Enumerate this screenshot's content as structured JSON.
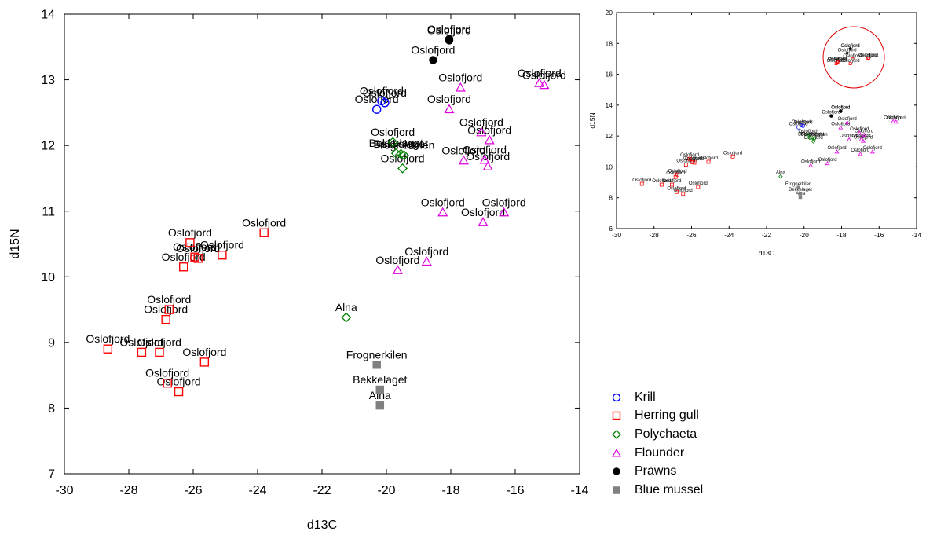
{
  "chart_data": [
    {
      "type": "scatter",
      "xlabel": "d13C",
      "ylabel": "d15N",
      "xlim": [
        -30,
        -14
      ],
      "ylim": [
        7,
        14
      ],
      "xticks": [
        -30,
        -28,
        -26,
        -24,
        -22,
        -20,
        -18,
        -16,
        -14
      ],
      "yticks": [
        7,
        8,
        9,
        10,
        11,
        12,
        13,
        14
      ],
      "grid": false,
      "legend_position": "bottom-right",
      "series": [
        {
          "name": "Krill",
          "marker": "open-circle",
          "color": "#0000ff",
          "points": [
            {
              "x": -20.3,
              "y": 12.55,
              "label": "Oslofjord"
            },
            {
              "x": -20.15,
              "y": 12.68,
              "label": "Oslofjord"
            },
            {
              "x": -20.05,
              "y": 12.65,
              "label": "Oslofjord"
            }
          ]
        },
        {
          "name": "Herring gull",
          "marker": "open-square",
          "color": "#ff0000",
          "points": [
            {
              "x": -28.65,
              "y": 8.9,
              "label": "Oslofjord"
            },
            {
              "x": -27.6,
              "y": 8.85,
              "label": "Oslofjord"
            },
            {
              "x": -27.05,
              "y": 8.85,
              "label": "Oslofjord"
            },
            {
              "x": -25.65,
              "y": 8.7,
              "label": "Oslofjord"
            },
            {
              "x": -26.8,
              "y": 8.38,
              "label": "Oslofjord"
            },
            {
              "x": -26.45,
              "y": 8.25,
              "label": "Oslofjord"
            },
            {
              "x": -26.85,
              "y": 9.35,
              "label": "Oslofjord"
            },
            {
              "x": -26.75,
              "y": 9.5,
              "label": "Oslofjord"
            },
            {
              "x": -26.3,
              "y": 10.15,
              "label": "Oslofjord"
            },
            {
              "x": -26.1,
              "y": 10.52,
              "label": "Oslofjord"
            },
            {
              "x": -25.95,
              "y": 10.3,
              "label": "Oslofjord"
            },
            {
              "x": -25.85,
              "y": 10.28,
              "label": "Oslofjord"
            },
            {
              "x": -25.1,
              "y": 10.33,
              "label": "Oslofjord"
            },
            {
              "x": -23.8,
              "y": 10.67,
              "label": "Oslofjord"
            }
          ]
        },
        {
          "name": "Polychaeta",
          "marker": "open-diamond",
          "color": "#008000",
          "points": [
            {
              "x": -21.25,
              "y": 9.38,
              "label": "Alna"
            },
            {
              "x": -19.8,
              "y": 12.05,
              "label": "Oslofjord"
            },
            {
              "x": -19.7,
              "y": 11.88,
              "label": "Bekkelaget"
            },
            {
              "x": -19.55,
              "y": 11.87,
              "label": "Bekkelaget"
            },
            {
              "x": -19.45,
              "y": 11.85,
              "label": "Frognerkilen"
            },
            {
              "x": -19.5,
              "y": 11.65,
              "label": "Oslofjord"
            }
          ]
        },
        {
          "name": "Flounder",
          "marker": "open-triangle",
          "color": "#e000e0",
          "points": [
            {
              "x": -17.7,
              "y": 12.88,
              "label": "Oslofjord"
            },
            {
              "x": -18.05,
              "y": 12.55,
              "label": "Oslofjord"
            },
            {
              "x": -15.25,
              "y": 12.95,
              "label": "Oslofjord"
            },
            {
              "x": -15.1,
              "y": 12.92,
              "label": "Oslofjord"
            },
            {
              "x": -17.05,
              "y": 12.2,
              "label": "Oslofjord"
            },
            {
              "x": -16.8,
              "y": 12.08,
              "label": "Oslofjord"
            },
            {
              "x": -17.6,
              "y": 11.77,
              "label": "Oslofjord"
            },
            {
              "x": -16.95,
              "y": 11.78,
              "label": "Oslofjord"
            },
            {
              "x": -16.85,
              "y": 11.68,
              "label": "Oslofjord"
            },
            {
              "x": -18.25,
              "y": 10.98,
              "label": "Oslofjord"
            },
            {
              "x": -16.35,
              "y": 10.98,
              "label": "Oslofjord"
            },
            {
              "x": -17.0,
              "y": 10.83,
              "label": "Oslofjord"
            },
            {
              "x": -19.65,
              "y": 10.1,
              "label": "Oslofjord"
            },
            {
              "x": -18.75,
              "y": 10.23,
              "label": "Oslofjord"
            }
          ]
        },
        {
          "name": "Prawns",
          "marker": "filled-circle",
          "color": "#000000",
          "points": [
            {
              "x": -18.05,
              "y": 13.62,
              "label": "Oslofjord"
            },
            {
              "x": -18.05,
              "y": 13.6,
              "label": "Oslofjord"
            },
            {
              "x": -18.55,
              "y": 13.3,
              "label": "Oslofjord"
            }
          ]
        },
        {
          "name": "Blue mussel",
          "marker": "filled-square",
          "color": "#808080",
          "points": [
            {
              "x": -20.3,
              "y": 8.66,
              "label": "Frognerkilen"
            },
            {
              "x": -20.2,
              "y": 8.28,
              "label": "Bekkelaget"
            },
            {
              "x": -20.2,
              "y": 8.04,
              "label": "Alna"
            }
          ]
        }
      ]
    },
    {
      "type": "scatter",
      "xlabel": "d13C",
      "ylabel": "d15N",
      "xlim": [
        -30,
        -14
      ],
      "ylim": [
        6,
        20
      ],
      "xticks": [
        -30,
        -28,
        -26,
        -24,
        -22,
        -20,
        -18,
        -16,
        -14
      ],
      "yticks": [
        6,
        8,
        10,
        12,
        14,
        16,
        18,
        20
      ],
      "grid": false,
      "annotation": "red circle highlighting the upper cluster",
      "highlight_circle": {
        "cx": -17.35,
        "cy": 17.1,
        "color": "#e00000"
      }
    }
  ]
}
